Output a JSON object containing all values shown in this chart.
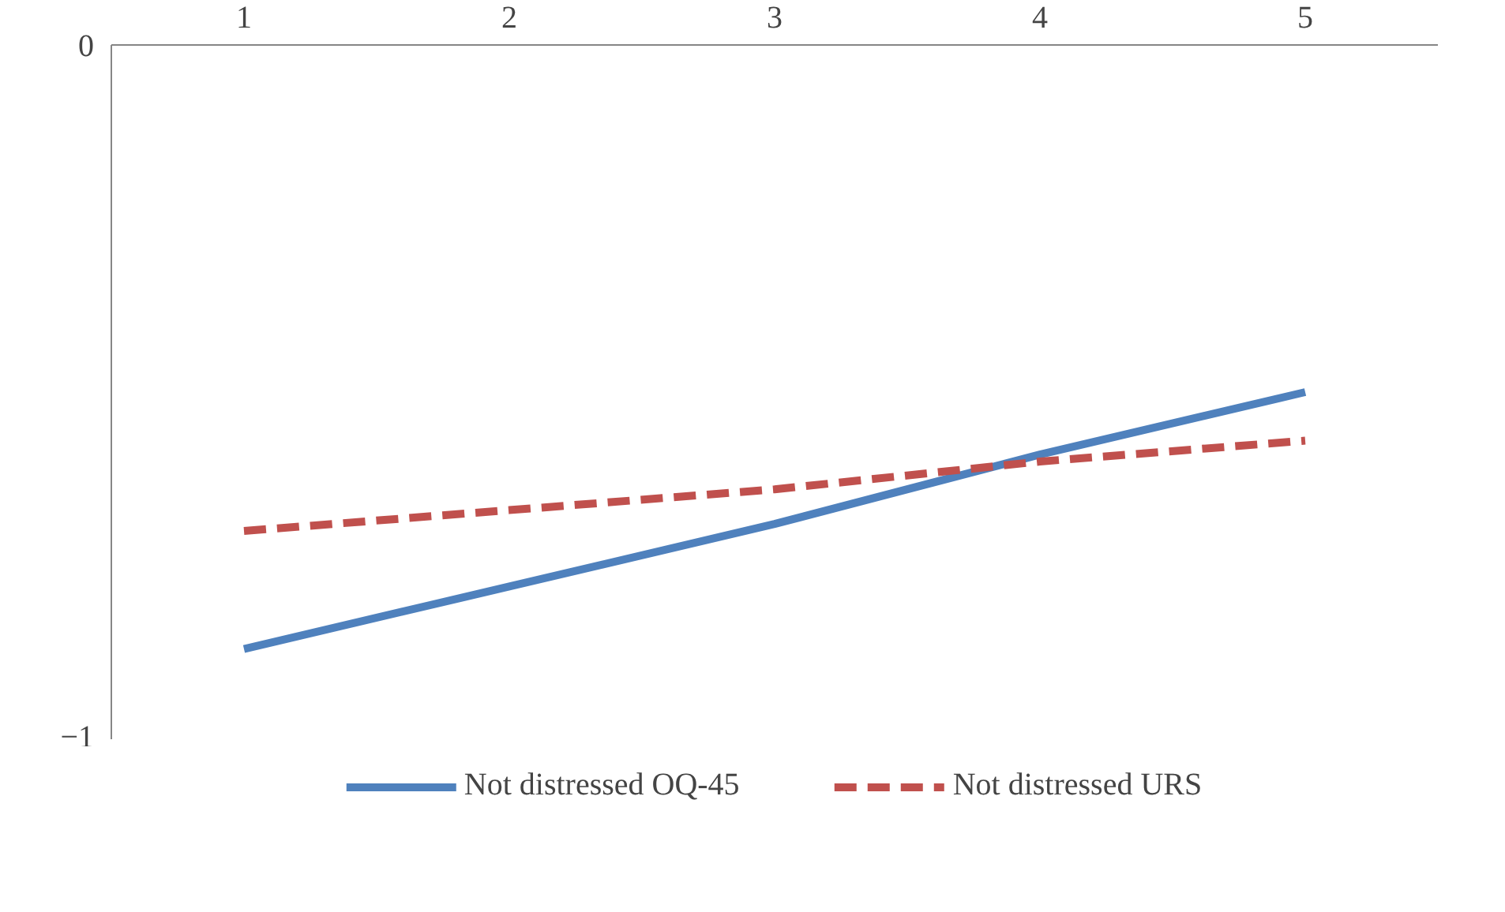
{
  "chart_data": {
    "type": "line",
    "categories": [
      "1",
      "2",
      "3",
      "4",
      "5"
    ],
    "series": [
      {
        "name": "Not distressed OQ-45",
        "color": "#4f81bd",
        "line_style": "solid",
        "values": [
          -0.87,
          -0.78,
          -0.69,
          -0.59,
          -0.5
        ]
      },
      {
        "name": "Not distressed URS",
        "color": "#c0504d",
        "line_style": "dashed",
        "values": [
          -0.7,
          -0.67,
          -0.64,
          -0.6,
          -0.57
        ]
      }
    ],
    "ylim": [
      -1,
      0
    ],
    "yticks": [
      -1,
      0
    ],
    "grid": false,
    "legend": "bottom",
    "marker": "none"
  }
}
